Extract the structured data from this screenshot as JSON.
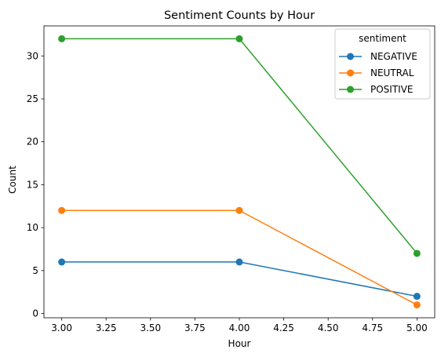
{
  "chart_data": {
    "type": "line",
    "title": "Sentiment Counts by Hour",
    "xlabel": "Hour",
    "ylabel": "Count",
    "x": [
      3,
      4,
      5
    ],
    "xlim": [
      2.9,
      5.1
    ],
    "ylim": [
      -0.5,
      33.5
    ],
    "xticks": [
      "3.00",
      "3.25",
      "3.50",
      "3.75",
      "4.00",
      "4.25",
      "4.50",
      "4.75",
      "5.00"
    ],
    "yticks": [
      "0",
      "5",
      "10",
      "15",
      "20",
      "25",
      "30"
    ],
    "grid": false,
    "legend": {
      "title": "sentiment",
      "placement": "top-right"
    },
    "series": [
      {
        "name": "NEGATIVE",
        "color": "#1f77b4",
        "values": [
          6,
          6,
          2
        ]
      },
      {
        "name": "NEUTRAL",
        "color": "#ff7f0e",
        "values": [
          12,
          12,
          1
        ]
      },
      {
        "name": "POSITIVE",
        "color": "#2ca02c",
        "values": [
          32,
          32,
          7
        ]
      }
    ]
  }
}
